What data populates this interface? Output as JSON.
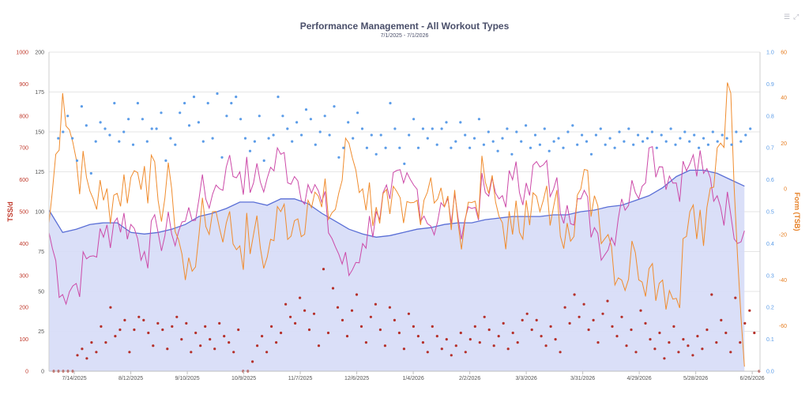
{
  "chart_data": {
    "type": "line",
    "title": "Performance Management - All Workout Types",
    "subtitle": "7/1/2025 - 7/1/2026",
    "x_tick_labels": [
      "7/14/2025",
      "8/12/2025",
      "9/10/2025",
      "10/9/2025",
      "11/7/2025",
      "12/6/2025",
      "1/4/2026",
      "2/2/2026",
      "3/3/2026",
      "3/31/2026",
      "4/29/2026",
      "5/28/2026",
      "6/26/2026"
    ],
    "axes": {
      "tss": {
        "label": "TSS/d",
        "ticks": [
          "0",
          "100",
          "200",
          "300",
          "400",
          "500",
          "600",
          "700",
          "800",
          "900",
          "1000"
        ],
        "range": [
          0,
          1000
        ]
      },
      "load": {
        "label": "",
        "ticks": [
          "0",
          "25",
          "50",
          "75",
          "100",
          "125",
          "150",
          "175",
          "200"
        ],
        "range": [
          0,
          200
        ]
      },
      "if": {
        "label": "",
        "ticks": [
          "0.0",
          "0.1",
          "0.2",
          "0.3",
          "0.4",
          "0.5",
          "0.6",
          "0.7",
          "0.8",
          "0.9",
          "1.0"
        ],
        "range": [
          0,
          1
        ]
      },
      "form": {
        "label": "Form (TSB)",
        "ticks": [
          "-60",
          "-40",
          "-20",
          "0",
          "20",
          "40",
          "60"
        ],
        "range": [
          -80,
          60
        ]
      }
    },
    "colors": {
      "fitness": "#5a6fd6",
      "fitness_fill": "#d6dcf7",
      "fatigue": "#cc4aa8",
      "form": "#f08c2e",
      "intensity": "#5b9ce8",
      "tss": "#b5302a"
    },
    "series_fitness_weekly": [
      101,
      87,
      89,
      92,
      93,
      93,
      87,
      86,
      87,
      89,
      92,
      97,
      99,
      102,
      106,
      106,
      104,
      108,
      108,
      105,
      99,
      94,
      89,
      86,
      84,
      85,
      87,
      89,
      90,
      92,
      93,
      93,
      95,
      96,
      97,
      97,
      97,
      98,
      98,
      100,
      101,
      103,
      104,
      107,
      110,
      115,
      122,
      126,
      126,
      124,
      120,
      116
    ],
    "series_fatigue_weekly": [
      87,
      48,
      55,
      72,
      84,
      96,
      92,
      75,
      87,
      86,
      94,
      108,
      111,
      128,
      125,
      118,
      121,
      136,
      122,
      117,
      106,
      78,
      60,
      80,
      100,
      108,
      118,
      114,
      91,
      103,
      96,
      102,
      112,
      108,
      120,
      118,
      128,
      114,
      104,
      108,
      90,
      76,
      108,
      112,
      140,
      128,
      118,
      130,
      124,
      110,
      98,
      88
    ],
    "series_form_weekly": [
      -15,
      42,
      13,
      -1,
      -5,
      -2,
      5,
      10,
      -5,
      0,
      -40,
      -20,
      -10,
      -15,
      -25,
      -20,
      -30,
      -10,
      -14,
      -5,
      -8,
      -9,
      20,
      0,
      -8,
      -11,
      -15,
      -5,
      5,
      -8,
      -15,
      -6,
      3,
      -12,
      -20,
      -5,
      -10,
      -8,
      -15,
      0,
      -3,
      -20,
      -40,
      -28,
      -35,
      -40,
      -48,
      -10,
      -25,
      18,
      42,
      -78
    ],
    "intensity_points": [
      [
        2,
        0.73
      ],
      [
        3,
        0.75
      ],
      [
        4,
        0.8
      ],
      [
        5,
        0.73
      ],
      [
        6,
        0.66
      ],
      [
        7,
        0.83
      ],
      [
        8,
        0.77
      ],
      [
        9,
        0.62
      ],
      [
        10,
        0.72
      ],
      [
        11,
        0.78
      ],
      [
        12,
        0.76
      ],
      [
        13,
        0.74
      ],
      [
        14,
        0.84
      ],
      [
        15,
        0.72
      ],
      [
        16,
        0.75
      ],
      [
        17,
        0.79
      ],
      [
        18,
        0.71
      ],
      [
        19,
        0.84
      ],
      [
        20,
        0.79
      ],
      [
        21,
        0.72
      ],
      [
        22,
        0.76
      ],
      [
        23,
        0.76
      ],
      [
        24,
        0.81
      ],
      [
        25,
        0.66
      ],
      [
        26,
        0.73
      ],
      [
        27,
        0.71
      ],
      [
        28,
        0.81
      ],
      [
        29,
        0.84
      ],
      [
        30,
        0.77
      ],
      [
        31,
        0.86
      ],
      [
        32,
        0.78
      ],
      [
        33,
        0.72
      ],
      [
        34,
        0.84
      ],
      [
        35,
        0.73
      ],
      [
        36,
        0.87
      ],
      [
        37,
        0.67
      ],
      [
        38,
        0.8
      ],
      [
        39,
        0.84
      ],
      [
        40,
        0.86
      ],
      [
        41,
        0.79
      ],
      [
        42,
        0.73
      ],
      [
        43,
        0.69
      ],
      [
        44,
        0.72
      ],
      [
        45,
        0.8
      ],
      [
        46,
        0.66
      ],
      [
        47,
        0.73
      ],
      [
        48,
        0.74
      ],
      [
        49,
        0.86
      ],
      [
        50,
        0.8
      ],
      [
        51,
        0.76
      ],
      [
        52,
        0.72
      ],
      [
        53,
        0.78
      ],
      [
        54,
        0.74
      ],
      [
        55,
        0.82
      ],
      [
        56,
        0.79
      ],
      [
        57,
        0.71
      ],
      [
        58,
        0.75
      ],
      [
        59,
        0.8
      ],
      [
        60,
        0.74
      ],
      [
        61,
        0.83
      ],
      [
        62,
        0.67
      ],
      [
        63,
        0.7
      ],
      [
        64,
        0.78
      ],
      [
        65,
        0.73
      ],
      [
        66,
        0.81
      ],
      [
        67,
        0.76
      ],
      [
        68,
        0.7
      ],
      [
        69,
        0.74
      ],
      [
        70,
        0.68
      ],
      [
        71,
        0.74
      ],
      [
        72,
        0.7
      ],
      [
        73,
        0.84
      ],
      [
        74,
        0.76
      ],
      [
        75,
        0.7
      ],
      [
        76,
        0.65
      ],
      [
        77,
        0.74
      ],
      [
        78,
        0.79
      ],
      [
        79,
        0.7
      ],
      [
        80,
        0.76
      ],
      [
        81,
        0.73
      ],
      [
        82,
        0.76
      ],
      [
        83,
        0.71
      ],
      [
        84,
        0.76
      ],
      [
        85,
        0.78
      ],
      [
        86,
        0.7
      ],
      [
        87,
        0.72
      ],
      [
        88,
        0.78
      ],
      [
        89,
        0.74
      ],
      [
        90,
        0.7
      ],
      [
        91,
        0.73
      ],
      [
        92,
        0.79
      ],
      [
        93,
        0.71
      ],
      [
        94,
        0.75
      ],
      [
        95,
        0.72
      ],
      [
        96,
        0.69
      ],
      [
        97,
        0.73
      ],
      [
        98,
        0.76
      ],
      [
        99,
        0.68
      ],
      [
        100,
        0.75
      ],
      [
        101,
        0.72
      ],
      [
        102,
        0.77
      ],
      [
        103,
        0.7
      ],
      [
        104,
        0.74
      ],
      [
        105,
        0.71
      ],
      [
        106,
        0.76
      ],
      [
        107,
        0.69
      ],
      [
        108,
        0.72
      ],
      [
        109,
        0.73
      ],
      [
        110,
        0.7
      ],
      [
        111,
        0.75
      ],
      [
        112,
        0.77
      ],
      [
        113,
        0.71
      ],
      [
        114,
        0.74
      ],
      [
        115,
        0.72
      ],
      [
        116,
        0.68
      ],
      [
        117,
        0.74
      ],
      [
        118,
        0.76
      ],
      [
        119,
        0.71
      ],
      [
        120,
        0.73
      ],
      [
        121,
        0.7
      ],
      [
        122,
        0.75
      ],
      [
        123,
        0.72
      ],
      [
        124,
        0.76
      ],
      [
        125,
        0.71
      ],
      [
        126,
        0.74
      ],
      [
        127,
        0.72
      ],
      [
        128,
        0.73
      ],
      [
        129,
        0.75
      ],
      [
        130,
        0.7
      ],
      [
        131,
        0.74
      ],
      [
        132,
        0.72
      ],
      [
        133,
        0.76
      ],
      [
        134,
        0.71
      ],
      [
        135,
        0.73
      ],
      [
        136,
        0.75
      ],
      [
        137,
        0.72
      ],
      [
        138,
        0.74
      ],
      [
        139,
        0.7
      ],
      [
        140,
        0.73
      ],
      [
        141,
        0.71
      ],
      [
        142,
        0.75
      ],
      [
        143,
        0.72
      ],
      [
        144,
        0.74
      ],
      [
        145,
        0.73
      ],
      [
        146,
        0.71
      ],
      [
        147,
        0.75
      ],
      [
        148,
        0.72
      ],
      [
        149,
        0.74
      ],
      [
        150,
        0.76
      ]
    ],
    "tss_points": [
      [
        1,
        0
      ],
      [
        2,
        0
      ],
      [
        3,
        0
      ],
      [
        4,
        0
      ],
      [
        5,
        0
      ],
      [
        6,
        50
      ],
      [
        7,
        70
      ],
      [
        8,
        40
      ],
      [
        9,
        90
      ],
      [
        10,
        60
      ],
      [
        11,
        140
      ],
      [
        12,
        90
      ],
      [
        13,
        200
      ],
      [
        14,
        110
      ],
      [
        15,
        130
      ],
      [
        16,
        160
      ],
      [
        17,
        60
      ],
      [
        18,
        130
      ],
      [
        19,
        170
      ],
      [
        20,
        160
      ],
      [
        21,
        120
      ],
      [
        22,
        80
      ],
      [
        23,
        150
      ],
      [
        24,
        130
      ],
      [
        25,
        70
      ],
      [
        26,
        140
      ],
      [
        27,
        170
      ],
      [
        28,
        100
      ],
      [
        29,
        150
      ],
      [
        30,
        60
      ],
      [
        31,
        120
      ],
      [
        32,
        80
      ],
      [
        33,
        140
      ],
      [
        34,
        100
      ],
      [
        35,
        70
      ],
      [
        36,
        150
      ],
      [
        37,
        110
      ],
      [
        38,
        90
      ],
      [
        39,
        60
      ],
      [
        40,
        130
      ],
      [
        41,
        0
      ],
      [
        42,
        0
      ],
      [
        43,
        30
      ],
      [
        44,
        80
      ],
      [
        45,
        110
      ],
      [
        46,
        60
      ],
      [
        47,
        140
      ],
      [
        48,
        90
      ],
      [
        49,
        120
      ],
      [
        50,
        210
      ],
      [
        51,
        170
      ],
      [
        52,
        150
      ],
      [
        53,
        230
      ],
      [
        54,
        190
      ],
      [
        55,
        130
      ],
      [
        56,
        180
      ],
      [
        57,
        80
      ],
      [
        58,
        320
      ],
      [
        59,
        120
      ],
      [
        60,
        260
      ],
      [
        61,
        200
      ],
      [
        62,
        160
      ],
      [
        63,
        110
      ],
      [
        64,
        190
      ],
      [
        65,
        240
      ],
      [
        66,
        140
      ],
      [
        67,
        90
      ],
      [
        68,
        170
      ],
      [
        69,
        210
      ],
      [
        70,
        130
      ],
      [
        71,
        80
      ],
      [
        72,
        200
      ],
      [
        73,
        160
      ],
      [
        74,
        120
      ],
      [
        75,
        70
      ],
      [
        76,
        180
      ],
      [
        77,
        140
      ],
      [
        78,
        110
      ],
      [
        79,
        90
      ],
      [
        80,
        60
      ],
      [
        81,
        140
      ],
      [
        82,
        110
      ],
      [
        83,
        70
      ],
      [
        84,
        100
      ],
      [
        85,
        50
      ],
      [
        86,
        80
      ],
      [
        87,
        120
      ],
      [
        88,
        60
      ],
      [
        89,
        100
      ],
      [
        90,
        140
      ],
      [
        91,
        90
      ],
      [
        92,
        170
      ],
      [
        93,
        130
      ],
      [
        94,
        80
      ],
      [
        95,
        110
      ],
      [
        96,
        150
      ],
      [
        97,
        70
      ],
      [
        98,
        120
      ],
      [
        99,
        90
      ],
      [
        100,
        160
      ],
      [
        101,
        180
      ],
      [
        102,
        130
      ],
      [
        103,
        160
      ],
      [
        104,
        110
      ],
      [
        105,
        80
      ],
      [
        106,
        140
      ],
      [
        107,
        100
      ],
      [
        108,
        60
      ],
      [
        109,
        200
      ],
      [
        110,
        150
      ],
      [
        111,
        240
      ],
      [
        112,
        170
      ],
      [
        113,
        210
      ],
      [
        114,
        130
      ],
      [
        115,
        160
      ],
      [
        116,
        90
      ],
      [
        117,
        180
      ],
      [
        118,
        220
      ],
      [
        119,
        140
      ],
      [
        120,
        110
      ],
      [
        121,
        170
      ],
      [
        122,
        80
      ],
      [
        123,
        130
      ],
      [
        124,
        60
      ],
      [
        125,
        190
      ],
      [
        126,
        150
      ],
      [
        127,
        100
      ],
      [
        128,
        70
      ],
      [
        129,
        120
      ],
      [
        130,
        40
      ],
      [
        131,
        90
      ],
      [
        132,
        140
      ],
      [
        133,
        60
      ],
      [
        134,
        100
      ],
      [
        135,
        80
      ],
      [
        136,
        50
      ],
      [
        137,
        110
      ],
      [
        138,
        70
      ],
      [
        139,
        130
      ],
      [
        140,
        240
      ],
      [
        141,
        90
      ],
      [
        142,
        160
      ],
      [
        143,
        120
      ],
      [
        144,
        60
      ],
      [
        145,
        230
      ],
      [
        146,
        90
      ],
      [
        147,
        150
      ],
      [
        148,
        190
      ],
      [
        149,
        120
      ],
      [
        150,
        0
      ]
    ]
  }
}
